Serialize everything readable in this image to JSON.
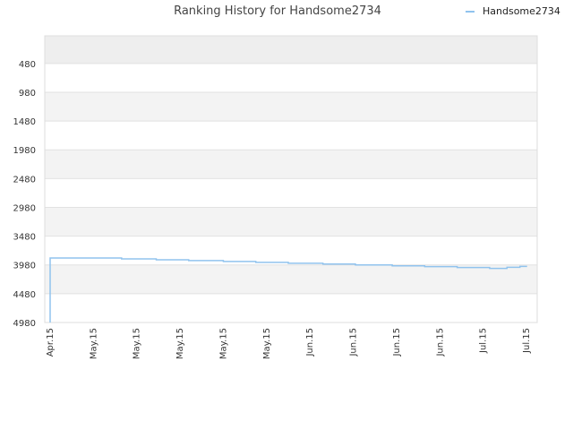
{
  "chart_data": {
    "type": "line",
    "title": "Ranking History for Handsome2734",
    "xlabel": "",
    "ylabel": "",
    "y_inverted": true,
    "ylim": [
      4980,
      0
    ],
    "yticks": [
      480,
      980,
      1480,
      1980,
      2480,
      2980,
      3480,
      3980,
      4480,
      4980
    ],
    "xticks": [
      "Apr.15",
      "May.15",
      "May.15",
      "May.15",
      "May.15",
      "May.15",
      "Jun.15",
      "Jun.15",
      "Jun.15",
      "Jun.15",
      "Jul.15",
      "Jul.15"
    ],
    "grid": true,
    "legend": {
      "position": "top-right"
    },
    "series": [
      {
        "name": "Handsome2734",
        "color": "#90c3ee",
        "x_index": [
          0.0,
          0.0,
          0.65,
          1.65,
          2.45,
          3.2,
          4.0,
          4.75,
          5.5,
          6.3,
          7.05,
          7.9,
          8.65,
          9.4,
          10.15,
          10.55,
          10.85
        ],
        "values": [
          4980,
          3860,
          3860,
          3875,
          3890,
          3905,
          3920,
          3935,
          3950,
          3965,
          3980,
          3995,
          4010,
          4025,
          4040,
          4020,
          4005
        ]
      }
    ]
  }
}
